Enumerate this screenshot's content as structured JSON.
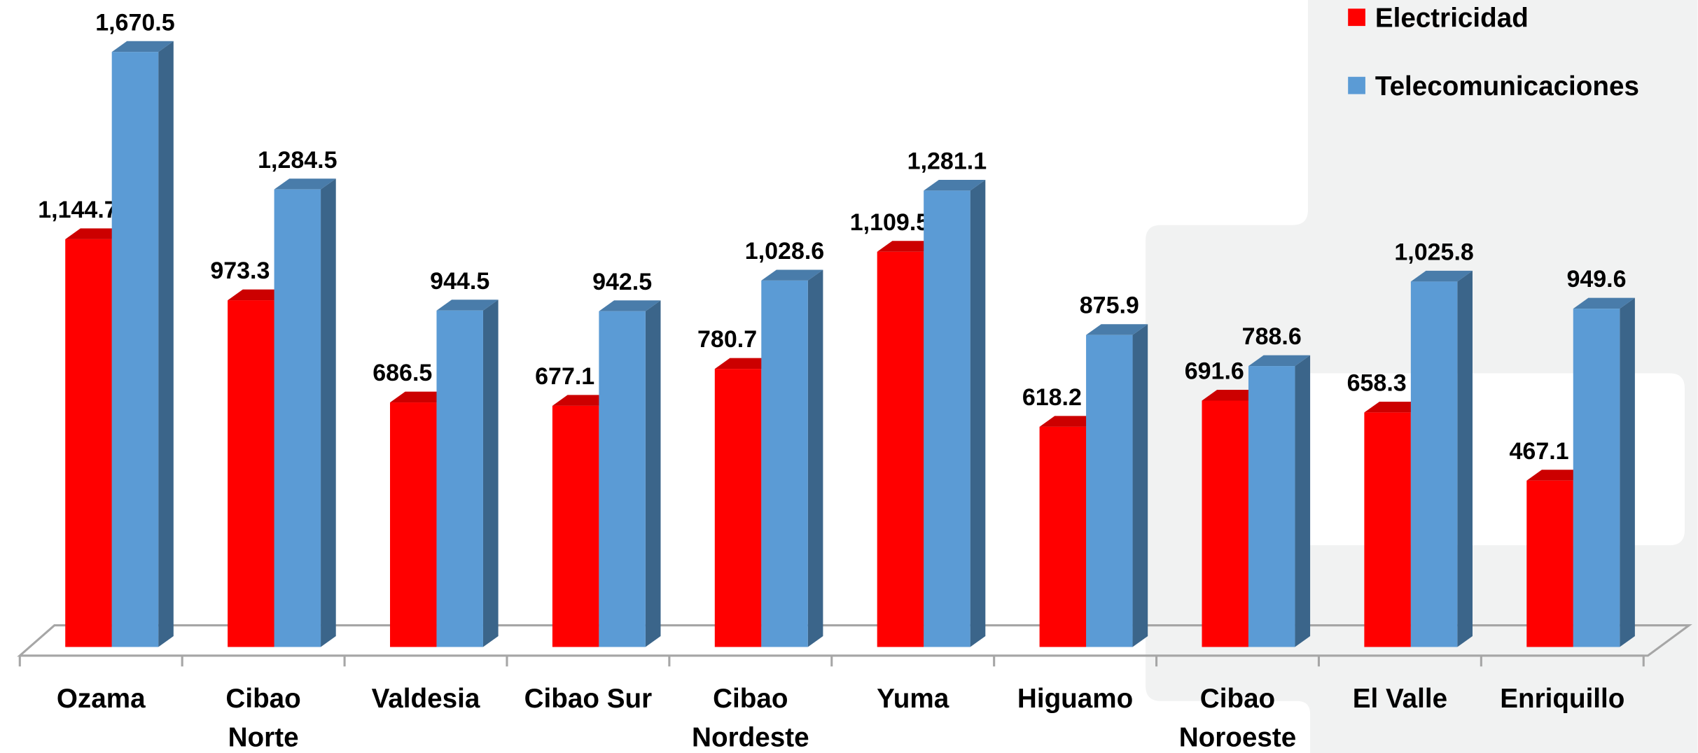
{
  "chart_data": {
    "type": "bar3d",
    "categories": [
      "Ozama",
      "Cibao Norte",
      "Valdesia",
      "Cibao Sur",
      "Cibao Nordeste",
      "Yuma",
      "Higuamo",
      "Cibao Noroeste",
      "El Valle",
      "Enriquillo"
    ],
    "series": [
      {
        "name": "Electricidad",
        "color": "#ff0000",
        "values": [
          1144.7,
          973.3,
          686.5,
          677.1,
          780.7,
          1109.5,
          618.2,
          691.6,
          658.3,
          467.1
        ],
        "value_labels": [
          "1,144.7",
          "973.3",
          "686.5",
          "677.1",
          "780.7",
          "1,109.5",
          "618.2",
          "691.6",
          "658.3",
          "467.1"
        ]
      },
      {
        "name": "Telecomunicaciones",
        "color": "#5b9bd5",
        "values": [
          1670.5,
          1284.5,
          944.5,
          942.5,
          1028.6,
          1281.1,
          875.9,
          788.6,
          1025.8,
          949.6
        ],
        "value_labels": [
          "1,670.5",
          "1,284.5",
          "944.5",
          "942.5",
          "1,028.6",
          "1,281.1",
          "875.9",
          "788.6",
          "1,025.8",
          "949.6"
        ]
      }
    ],
    "legend": "top-right"
  }
}
